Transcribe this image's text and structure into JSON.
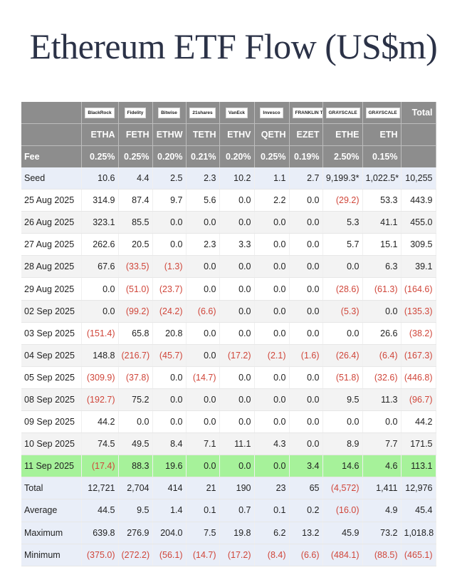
{
  "title": "Ethereum ETF Flow (US$m)",
  "issuers": [
    {
      "logo": "BlackRock",
      "ticker": "ETHA",
      "fee": "0.25%",
      "icon": "blackrock-logo"
    },
    {
      "logo": "Fidelity",
      "ticker": "FETH",
      "fee": "0.25%",
      "icon": "fidelity-logo"
    },
    {
      "logo": "Bitwise",
      "ticker": "ETHW",
      "fee": "0.20%",
      "icon": "bitwise-logo"
    },
    {
      "logo": "21shares",
      "ticker": "TETH",
      "fee": "0.21%",
      "icon": "21shares-logo"
    },
    {
      "logo": "VanEck",
      "ticker": "ETHV",
      "fee": "0.20%",
      "icon": "vaneck-logo"
    },
    {
      "logo": "Invesco",
      "ticker": "QETH",
      "fee": "0.25%",
      "icon": "invesco-logo"
    },
    {
      "logo": "FRANKLIN TEMPLETON",
      "ticker": "EZET",
      "fee": "0.19%",
      "icon": "franklin-templeton-logo"
    },
    {
      "logo": "GRAYSCALE",
      "ticker": "ETHE",
      "fee": "2.50%",
      "icon": "grayscale-logo"
    },
    {
      "logo": "GRAYSCALE",
      "ticker": "ETH",
      "fee": "0.15%",
      "icon": "grayscale-logo"
    }
  ],
  "total_label": "Total",
  "fee_label": "Fee",
  "colors": {
    "header": "#8d8d8d",
    "seed_stats": "#e9eef8",
    "highlight": "#a6f29a",
    "negative": "#d0463a"
  },
  "chart_data": {
    "type": "table",
    "title": "Ethereum ETF Flow (US$m)",
    "columns": [
      "ETHA",
      "FETH",
      "ETHW",
      "TETH",
      "ETHV",
      "QETH",
      "EZET",
      "ETHE",
      "ETH",
      "Total"
    ],
    "rows": [
      {
        "label": "Seed",
        "kind": "seed",
        "cells": [
          "10.6",
          "4.4",
          "2.5",
          "2.3",
          "10.2",
          "1.1",
          "2.7",
          "9,199.3*",
          "1,022.5*",
          "10,255"
        ]
      },
      {
        "label": "25 Aug 2025",
        "kind": "day",
        "cells": [
          "314.9",
          "87.4",
          "9.7",
          "5.6",
          "0.0",
          "2.2",
          "0.0",
          "(29.2)",
          "53.3",
          "443.9"
        ]
      },
      {
        "label": "26 Aug 2025",
        "kind": "day",
        "cells": [
          "323.1",
          "85.5",
          "0.0",
          "0.0",
          "0.0",
          "0.0",
          "0.0",
          "5.3",
          "41.1",
          "455.0"
        ]
      },
      {
        "label": "27 Aug 2025",
        "kind": "day",
        "cells": [
          "262.6",
          "20.5",
          "0.0",
          "2.3",
          "3.3",
          "0.0",
          "0.0",
          "5.7",
          "15.1",
          "309.5"
        ]
      },
      {
        "label": "28 Aug 2025",
        "kind": "day",
        "cells": [
          "67.6",
          "(33.5)",
          "(1.3)",
          "0.0",
          "0.0",
          "0.0",
          "0.0",
          "0.0",
          "6.3",
          "39.1"
        ]
      },
      {
        "label": "29 Aug 2025",
        "kind": "day",
        "cells": [
          "0.0",
          "(51.0)",
          "(23.7)",
          "0.0",
          "0.0",
          "0.0",
          "0.0",
          "(28.6)",
          "(61.3)",
          "(164.6)"
        ]
      },
      {
        "label": "02 Sep 2025",
        "kind": "day",
        "cells": [
          "0.0",
          "(99.2)",
          "(24.2)",
          "(6.6)",
          "0.0",
          "0.0",
          "0.0",
          "(5.3)",
          "0.0",
          "(135.3)"
        ]
      },
      {
        "label": "03 Sep 2025",
        "kind": "day",
        "cells": [
          "(151.4)",
          "65.8",
          "20.8",
          "0.0",
          "0.0",
          "0.0",
          "0.0",
          "0.0",
          "26.6",
          "(38.2)"
        ]
      },
      {
        "label": "04 Sep 2025",
        "kind": "day",
        "cells": [
          "148.8",
          "(216.7)",
          "(45.7)",
          "0.0",
          "(17.2)",
          "(2.1)",
          "(1.6)",
          "(26.4)",
          "(6.4)",
          "(167.3)"
        ]
      },
      {
        "label": "05 Sep 2025",
        "kind": "day",
        "cells": [
          "(309.9)",
          "(37.8)",
          "0.0",
          "(14.7)",
          "0.0",
          "0.0",
          "0.0",
          "(51.8)",
          "(32.6)",
          "(446.8)"
        ]
      },
      {
        "label": "08 Sep 2025",
        "kind": "day",
        "cells": [
          "(192.7)",
          "75.2",
          "0.0",
          "0.0",
          "0.0",
          "0.0",
          "0.0",
          "9.5",
          "11.3",
          "(96.7)"
        ]
      },
      {
        "label": "09 Sep 2025",
        "kind": "day",
        "cells": [
          "44.2",
          "0.0",
          "0.0",
          "0.0",
          "0.0",
          "0.0",
          "0.0",
          "0.0",
          "0.0",
          "44.2"
        ]
      },
      {
        "label": "10 Sep 2025",
        "kind": "day",
        "cells": [
          "74.5",
          "49.5",
          "8.4",
          "7.1",
          "11.1",
          "4.3",
          "0.0",
          "8.9",
          "7.7",
          "171.5"
        ]
      },
      {
        "label": "11 Sep 2025",
        "kind": "highlight",
        "cells": [
          "(17.4)",
          "88.3",
          "19.6",
          "0.0",
          "0.0",
          "0.0",
          "3.4",
          "14.6",
          "4.6",
          "113.1"
        ]
      },
      {
        "label": "Total",
        "kind": "stat",
        "cells": [
          "12,721",
          "2,704",
          "414",
          "21",
          "190",
          "23",
          "65",
          "(4,572)",
          "1,411",
          "12,976"
        ]
      },
      {
        "label": "Average",
        "kind": "stat",
        "cells": [
          "44.5",
          "9.5",
          "1.4",
          "0.1",
          "0.7",
          "0.1",
          "0.2",
          "(16.0)",
          "4.9",
          "45.4"
        ]
      },
      {
        "label": "Maximum",
        "kind": "stat",
        "cells": [
          "639.8",
          "276.9",
          "204.0",
          "7.5",
          "19.8",
          "6.2",
          "13.2",
          "45.9",
          "73.2",
          "1,018.8"
        ]
      },
      {
        "label": "Minimum",
        "kind": "stat",
        "cells": [
          "(375.0)",
          "(272.2)",
          "(56.1)",
          "(14.7)",
          "(17.2)",
          "(8.4)",
          "(6.6)",
          "(484.1)",
          "(88.5)",
          "(465.1)"
        ]
      }
    ]
  }
}
